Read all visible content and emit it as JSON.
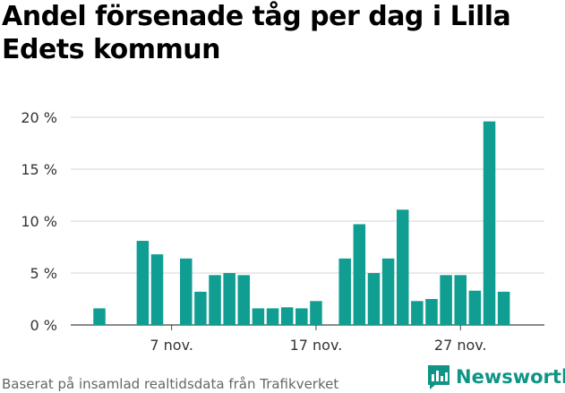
{
  "title": "Andel försenade tåg per dag i Lilla Edets kommun",
  "footer": "Baserat på insamlad realtidsdata från Trafikverket",
  "brand": {
    "name": "Newsworthy",
    "icon": "newsworthy-logo-icon"
  },
  "colors": {
    "bar": "#0f9e91",
    "brand": "#109486",
    "grid": "#d6d6d6"
  },
  "chart_data": {
    "type": "bar",
    "title": "Andel försenade tåg per dag i Lilla Edets kommun",
    "xlabel": "",
    "ylabel": "",
    "ylim": [
      0,
      20
    ],
    "grid": true,
    "y_ticks": [
      {
        "value": 0,
        "label": "0 %"
      },
      {
        "value": 5,
        "label": "5 %"
      },
      {
        "value": 10,
        "label": "10 %"
      },
      {
        "value": 15,
        "label": "15 %"
      },
      {
        "value": 20,
        "label": "20 %"
      }
    ],
    "x_ticks": [
      {
        "index": 5,
        "label": "7 nov."
      },
      {
        "index": 15,
        "label": "17 nov."
      },
      {
        "index": 25,
        "label": "27 nov."
      }
    ],
    "categories": [
      "1 nov.",
      "2 nov.",
      "3 nov.",
      "4 nov.",
      "5 nov.",
      "6 nov.",
      "7 nov.",
      "8 nov.",
      "9 nov.",
      "10 nov.",
      "11 nov.",
      "12 nov.",
      "13 nov.",
      "14 nov.",
      "15 nov.",
      "16 nov.",
      "17 nov.",
      "18 nov.",
      "19 nov.",
      "20 nov.",
      "21 nov.",
      "22 nov.",
      "23 nov.",
      "24 nov.",
      "25 nov.",
      "26 nov.",
      "27 nov.",
      "28 nov.",
      "29 nov."
    ],
    "values": [
      1.6,
      null,
      null,
      8.1,
      6.8,
      null,
      6.4,
      3.2,
      4.8,
      5.0,
      4.8,
      1.6,
      1.6,
      1.7,
      1.6,
      2.3,
      null,
      6.4,
      9.7,
      5.0,
      6.4,
      11.1,
      2.3,
      2.5,
      4.8,
      4.8,
      3.3,
      19.6,
      3.2
    ]
  }
}
